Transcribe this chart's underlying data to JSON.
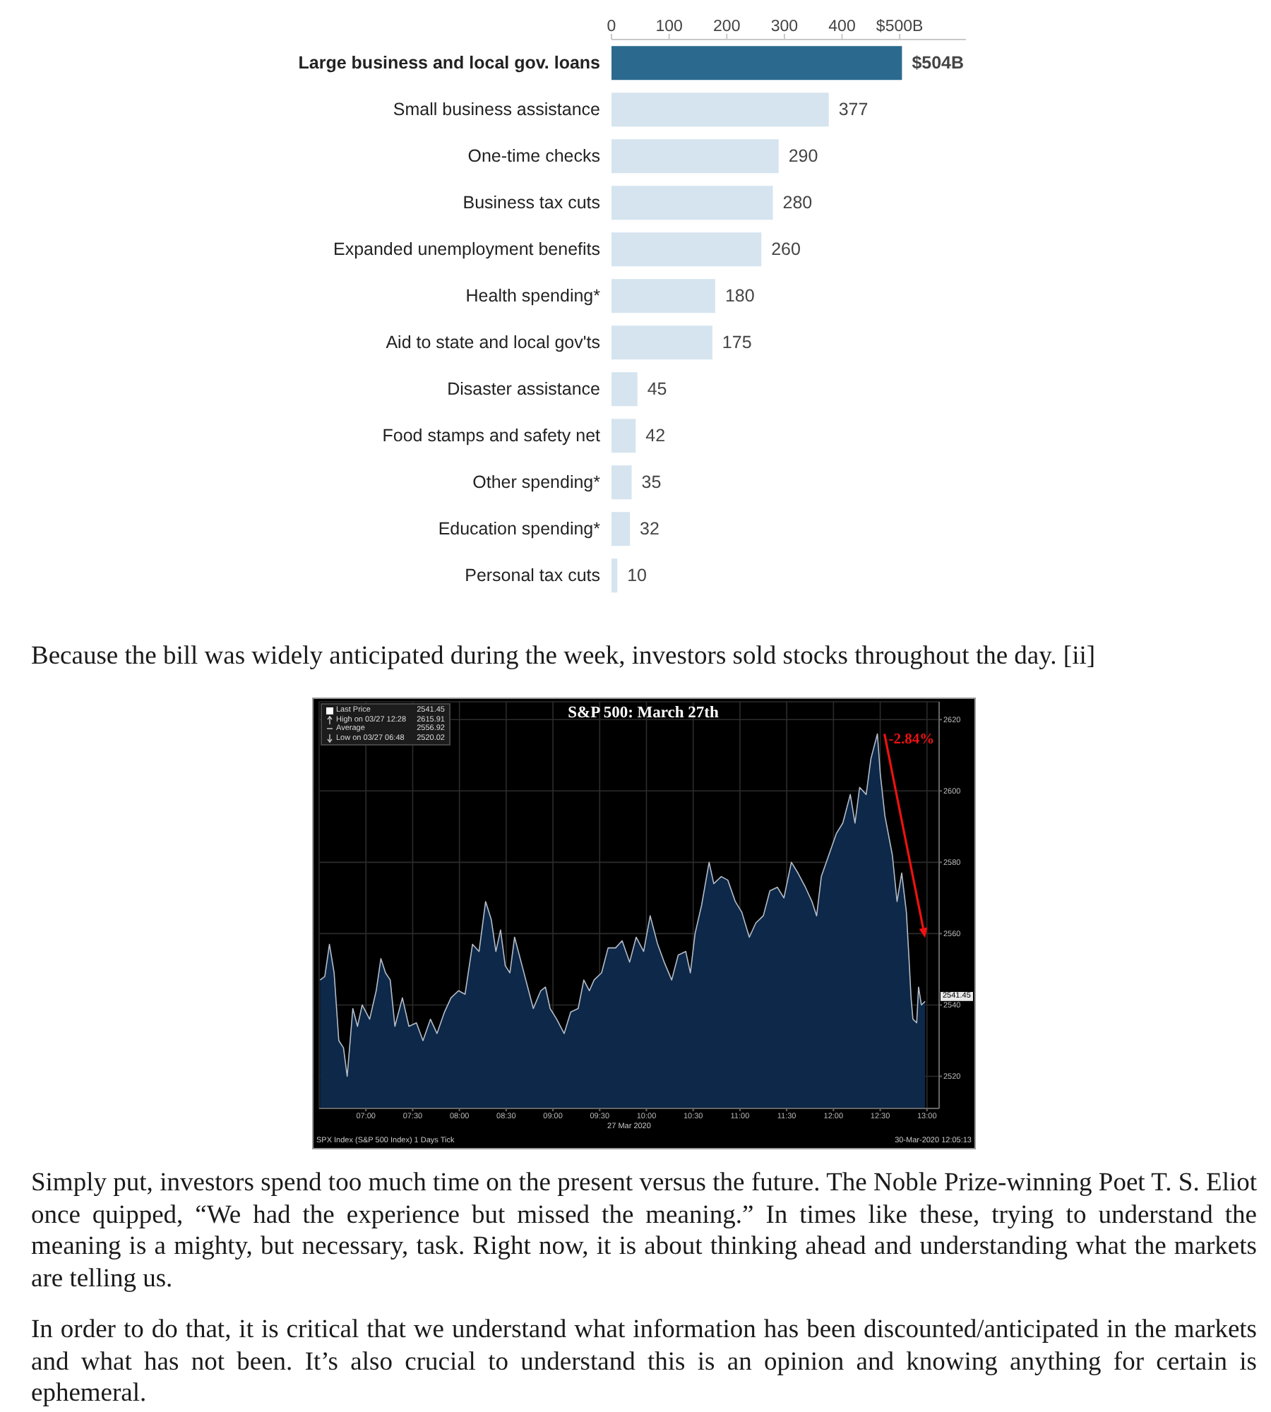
{
  "chart_data": [
    {
      "type": "bar",
      "orientation": "horizontal",
      "categories": [
        "Large business and local gov. loans",
        "Small business assistance",
        "One-time checks",
        "Business tax cuts",
        "Expanded unemployment benefits",
        "Health spending*",
        "Aid to state and local gov'ts",
        "Disaster assistance",
        "Food stamps and safety net",
        "Other spending*",
        "Education spending*",
        "Personal tax cuts"
      ],
      "values": [
        504,
        377,
        290,
        280,
        260,
        180,
        175,
        45,
        42,
        35,
        32,
        10
      ],
      "colors": [
        "#2b6a8e",
        "#d5e4ef",
        "#d5e4ef",
        "#d5e4ef",
        "#d5e4ef",
        "#d5e4ef",
        "#d5e4ef",
        "#d5e4ef",
        "#d5e4ef",
        "#d5e4ef",
        "#d5e4ef",
        "#d5e4ef"
      ],
      "value_labels": [
        "$504B",
        "377",
        "290",
        "280",
        "260",
        "180",
        "175",
        "45",
        "42",
        "35",
        "32",
        "10"
      ],
      "xlim": [
        0,
        615
      ],
      "xticks": [
        0,
        100,
        200,
        300,
        400,
        {
          "value": 500,
          "label": "$500B"
        }
      ]
    },
    {
      "type": "other",
      "annotations": [
        "Because the bill was widely anticipated during the week, investors sold stocks throughout the day. [ii]"
      ]
    },
    {
      "type": "area",
      "title": "S&P 500: March 27th",
      "xlabel": "27 Mar 2020",
      "x": [
        6.51,
        6.56,
        6.61,
        6.66,
        6.71,
        6.76,
        6.8,
        6.86,
        6.91,
        6.96,
        7.04,
        7.11,
        7.16,
        7.21,
        7.26,
        7.31,
        7.39,
        7.46,
        7.54,
        7.61,
        7.69,
        7.76,
        7.84,
        7.91,
        7.99,
        8.06,
        8.14,
        8.21,
        8.28,
        8.34,
        8.39,
        8.44,
        8.49,
        8.54,
        8.59,
        8.67,
        8.74,
        8.79,
        8.87,
        8.92,
        8.97,
        9.04,
        9.12,
        9.19,
        9.27,
        9.33,
        9.39,
        9.44,
        9.52,
        9.59,
        9.67,
        9.74,
        9.82,
        9.89,
        9.97,
        10.04,
        10.12,
        10.19,
        10.27,
        10.34,
        10.42,
        10.47,
        10.52,
        10.59,
        10.67,
        10.72,
        10.8,
        10.87,
        10.95,
        11.02,
        11.1,
        11.17,
        11.25,
        11.32,
        11.4,
        11.47,
        11.55,
        11.62,
        11.7,
        11.77,
        11.82,
        11.87,
        11.95,
        12.03,
        12.1,
        12.18,
        12.23,
        12.28,
        12.35,
        12.4,
        12.47,
        12.5,
        12.55,
        12.63,
        12.68,
        12.73,
        12.78,
        12.81,
        12.83,
        12.85,
        12.89,
        12.91,
        12.94,
        12.98
      ],
      "series": [
        {
          "name": "Last Price",
          "color": "#0d2848",
          "values": [
            2547,
            2548,
            2557,
            2549,
            2530,
            2528,
            2520,
            2539,
            2534,
            2540,
            2536,
            2544,
            2553,
            2549,
            2547,
            2534,
            2542,
            2534,
            2535,
            2530,
            2536,
            2532,
            2538,
            2542,
            2544,
            2543,
            2557,
            2555,
            2569,
            2564,
            2555,
            2561,
            2551,
            2549,
            2559,
            2551,
            2544,
            2539,
            2544,
            2545,
            2539,
            2536,
            2532,
            2538,
            2539,
            2547,
            2544,
            2547,
            2549,
            2556,
            2556,
            2558,
            2552,
            2559,
            2555,
            2565,
            2557,
            2552,
            2547,
            2554,
            2555,
            2549,
            2560,
            2568,
            2580,
            2574,
            2576,
            2575,
            2569,
            2566,
            2559,
            2563,
            2565,
            2572,
            2573,
            2570,
            2580,
            2577,
            2573,
            2569,
            2565,
            2576,
            2582,
            2588,
            2591,
            2599,
            2591,
            2601,
            2599,
            2609,
            2616,
            2605,
            2593,
            2582,
            2569,
            2577,
            2566,
            2552,
            2542,
            2536,
            2535,
            2545,
            2540,
            2541
          ]
        }
      ],
      "xlim": [
        6.5,
        13.13
      ],
      "xticks": [
        {
          "value": 7,
          "label": "07:00"
        },
        {
          "value": 7.5,
          "label": "07:30"
        },
        {
          "value": 8,
          "label": "08:00"
        },
        {
          "value": 8.5,
          "label": "08:30"
        },
        {
          "value": 9,
          "label": "09:00"
        },
        {
          "value": 9.5,
          "label": "09:30"
        },
        {
          "value": 10,
          "label": "10:00"
        },
        {
          "value": 10.5,
          "label": "10:30"
        },
        {
          "value": 11,
          "label": "11:00"
        },
        {
          "value": 11.5,
          "label": "11:30"
        },
        {
          "value": 12,
          "label": "12:00"
        },
        {
          "value": 12.5,
          "label": "12:30"
        },
        {
          "value": 13,
          "label": "13:00"
        }
      ],
      "ylim": [
        2511,
        2625
      ],
      "yticks": [
        2520,
        2540,
        2560,
        2580,
        2600,
        2620
      ],
      "grid": true,
      "legend": "top left",
      "annotations": [
        "2541.45",
        "High on 03/27 12:28 2615.91",
        "Average 2556.92",
        "Low on 03/27 06:48 2520.02",
        {
          "text": "-2.84%",
          "x": 12.47,
          "y": 2616
        },
        "SPX Index (S&P 500 Index) 1 Days Tick",
        "30-Mar-2020 12:05:13"
      ]
    },
    {
      "type": "other",
      "annotations": [
        "Simply put, investors spend too much time on the present versus the future. The Noble Prize-winning Poet T. S. Eliot once quipped, “We had the experience but missed the meaning.” In times like these, trying to understand the meaning is a mighty, but necessary, task. Right now, it is about thinking ahead and understanding what the markets are telling us.",
        "In order to do that, it is critical that we understand what information has been discounted/anticipated in the markets and what has not been. It’s also crucial to understand this is an opinion and knowing anything for certain is ephemeral."
      ]
    }
  ]
}
